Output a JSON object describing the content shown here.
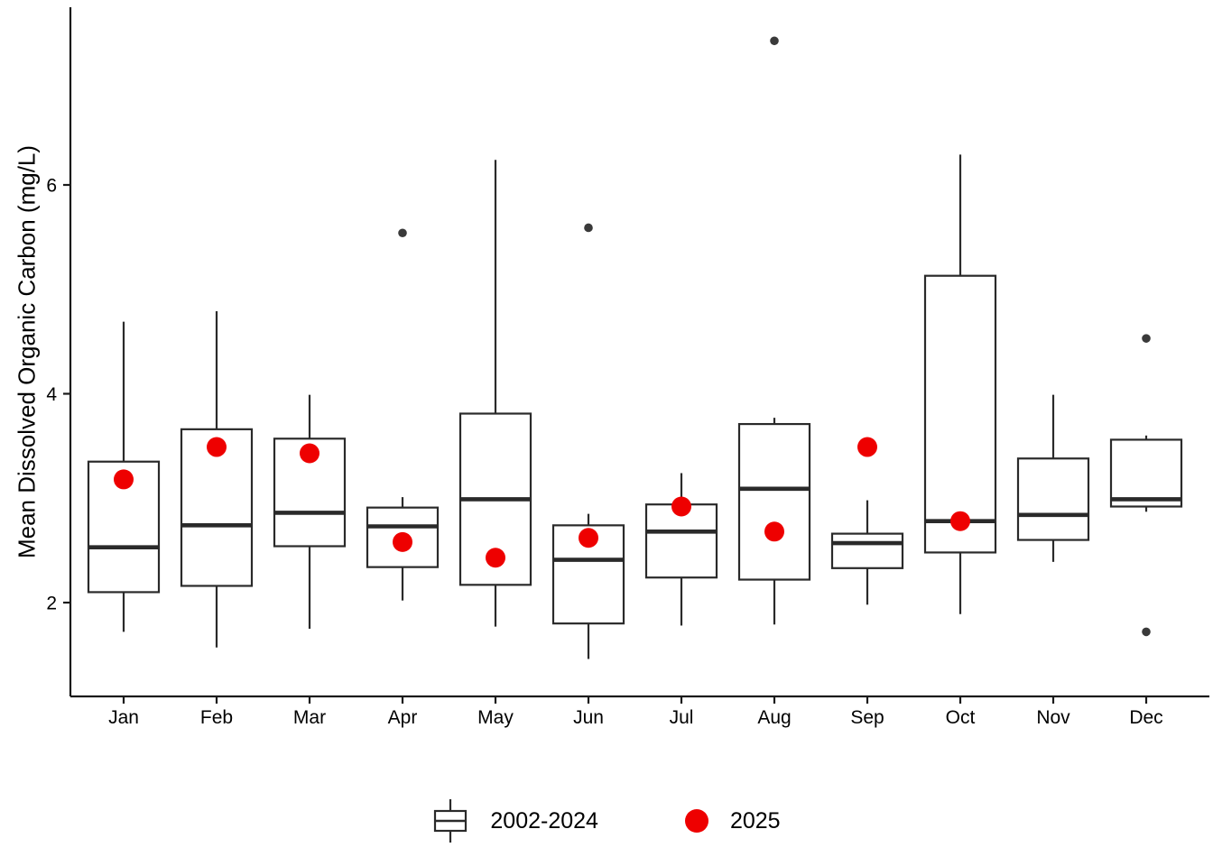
{
  "chart_data": {
    "type": "boxplot",
    "title": "",
    "xlabel": "",
    "ylabel": "Mean Dissolved Organic Carbon (mg/L)",
    "categories": [
      "Jan",
      "Feb",
      "Mar",
      "Apr",
      "May",
      "Jun",
      "Jul",
      "Aug",
      "Sep",
      "Oct",
      "Nov",
      "Dec"
    ],
    "yticks": [
      2,
      4,
      6
    ],
    "ylim": [
      1.1,
      7.7
    ],
    "grid": false,
    "legend": {
      "position": "bottom",
      "entries": [
        {
          "label": "2002-2024",
          "glyph": "boxplot"
        },
        {
          "label": "2025",
          "glyph": "filled-circle"
        }
      ]
    },
    "series": [
      {
        "name": "2002-2024",
        "type": "box",
        "boxes": [
          {
            "category": "Jan",
            "whisker_low": 1.72,
            "q1": 2.1,
            "median": 2.53,
            "q3": 3.35,
            "whisker_high": 4.69,
            "outliers": []
          },
          {
            "category": "Feb",
            "whisker_low": 1.57,
            "q1": 2.16,
            "median": 2.74,
            "q3": 3.66,
            "whisker_high": 4.79,
            "outliers": []
          },
          {
            "category": "Mar",
            "whisker_low": 1.75,
            "q1": 2.54,
            "median": 2.86,
            "q3": 3.57,
            "whisker_high": 3.99,
            "outliers": []
          },
          {
            "category": "Apr",
            "whisker_low": 2.02,
            "q1": 2.34,
            "median": 2.73,
            "q3": 2.91,
            "whisker_high": 3.01,
            "outliers": [
              5.54
            ]
          },
          {
            "category": "May",
            "whisker_low": 1.77,
            "q1": 2.17,
            "median": 2.99,
            "q3": 3.81,
            "whisker_high": 6.24,
            "outliers": []
          },
          {
            "category": "Jun",
            "whisker_low": 1.46,
            "q1": 1.8,
            "median": 2.41,
            "q3": 2.74,
            "whisker_high": 2.85,
            "outliers": [
              5.59
            ]
          },
          {
            "category": "Jul",
            "whisker_low": 1.78,
            "q1": 2.24,
            "median": 2.68,
            "q3": 2.94,
            "whisker_high": 3.24,
            "outliers": []
          },
          {
            "category": "Aug",
            "whisker_low": 1.79,
            "q1": 2.22,
            "median": 3.09,
            "q3": 3.71,
            "whisker_high": 3.77,
            "outliers": [
              7.38
            ]
          },
          {
            "category": "Sep",
            "whisker_low": 1.98,
            "q1": 2.33,
            "median": 2.57,
            "q3": 2.66,
            "whisker_high": 2.98,
            "outliers": []
          },
          {
            "category": "Oct",
            "whisker_low": 1.89,
            "q1": 2.48,
            "median": 2.78,
            "q3": 5.13,
            "whisker_high": 6.29,
            "outliers": []
          },
          {
            "category": "Nov",
            "whisker_low": 2.39,
            "q1": 2.6,
            "median": 2.84,
            "q3": 3.38,
            "whisker_high": 3.99,
            "outliers": []
          },
          {
            "category": "Dec",
            "whisker_low": 2.87,
            "q1": 2.92,
            "median": 2.99,
            "q3": 3.56,
            "whisker_high": 3.6,
            "outliers": [
              4.53,
              1.72
            ]
          }
        ]
      },
      {
        "name": "2025",
        "type": "points",
        "values": [
          3.18,
          3.49,
          3.43,
          2.58,
          2.43,
          2.62,
          2.92,
          2.68,
          3.49,
          2.78,
          null,
          null
        ]
      }
    ],
    "colors": {
      "box_stroke": "#2a2a2a",
      "median": "#2a2a2a",
      "outlier": "#3a3a3a",
      "dot_2025": "#ee0000",
      "axis": "#1a1a1a",
      "text": "#000000"
    }
  }
}
